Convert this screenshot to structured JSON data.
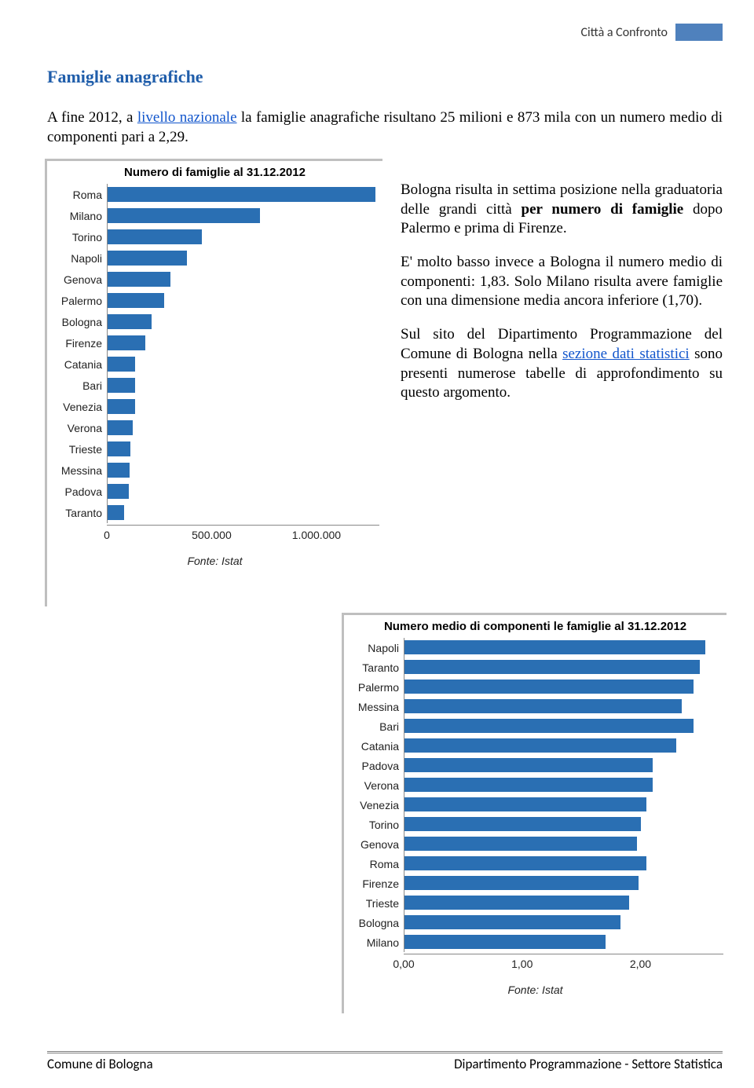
{
  "header": {
    "text": "Città a Confronto"
  },
  "section_title": "Famiglie anagrafiche",
  "intro": {
    "pre": "A fine 2012, a ",
    "link": "livello nazionale",
    "post": " la famiglie anagrafiche risultano 25 milioni e 873 mila con un numero medio di componenti pari a 2,29."
  },
  "chart1": {
    "title": "Numero di famiglie al 31.12.2012",
    "bar_color": "#2a6fb3",
    "xmax": 1300000,
    "ticks": [
      {
        "pos": 0,
        "label": "0"
      },
      {
        "pos": 500000,
        "label": "500.000"
      },
      {
        "pos": 1000000,
        "label": "1.000.000"
      }
    ],
    "rows": [
      {
        "label": "Roma",
        "value": 1280000
      },
      {
        "label": "Milano",
        "value": 730000
      },
      {
        "label": "Torino",
        "value": 450000
      },
      {
        "label": "Napoli",
        "value": 380000
      },
      {
        "label": "Genova",
        "value": 300000
      },
      {
        "label": "Palermo",
        "value": 270000
      },
      {
        "label": "Bologna",
        "value": 210000
      },
      {
        "label": "Firenze",
        "value": 180000
      },
      {
        "label": "Catania",
        "value": 130000
      },
      {
        "label": "Bari",
        "value": 130000
      },
      {
        "label": "Venezia",
        "value": 130000
      },
      {
        "label": "Verona",
        "value": 120000
      },
      {
        "label": "Trieste",
        "value": 110000
      },
      {
        "label": "Messina",
        "value": 105000
      },
      {
        "label": "Padova",
        "value": 100000
      },
      {
        "label": "Taranto",
        "value": 80000
      }
    ],
    "source": "Fonte: Istat"
  },
  "body": {
    "p1_pre": "Bologna risulta in settima posizione nella graduatoria delle grandi città ",
    "p1_b": "per numero di famiglie",
    "p1_post": " dopo Palermo e prima di Firenze.",
    "p2": "E' molto basso invece a Bologna il numero medio di componenti: 1,83. Solo Milano risulta avere famiglie con una dimensione media ancora inferiore (1,70).",
    "p3_pre": "Sul sito del Dipartimento Programmazione del Comune di Bologna nella ",
    "p3_link": "sezione dati statistici",
    "p3_post": " sono presenti numerose tabelle di approfondimento su questo argomento."
  },
  "chart2": {
    "title": "Numero medio di componenti le famiglie al 31.12.2012",
    "bar_color": "#2a6fb3",
    "xmax": 2.7,
    "ticks": [
      {
        "pos": 0,
        "label": "0,00"
      },
      {
        "pos": 1,
        "label": "1,00"
      },
      {
        "pos": 2,
        "label": "2,00"
      }
    ],
    "rows": [
      {
        "label": "Napoli",
        "value": 2.55
      },
      {
        "label": "Taranto",
        "value": 2.5
      },
      {
        "label": "Palermo",
        "value": 2.45
      },
      {
        "label": "Messina",
        "value": 2.35
      },
      {
        "label": "Bari",
        "value": 2.45
      },
      {
        "label": "Catania",
        "value": 2.3
      },
      {
        "label": "Padova",
        "value": 2.1
      },
      {
        "label": "Verona",
        "value": 2.1
      },
      {
        "label": "Venezia",
        "value": 2.05
      },
      {
        "label": "Torino",
        "value": 2.0
      },
      {
        "label": "Genova",
        "value": 1.97
      },
      {
        "label": "Roma",
        "value": 2.05
      },
      {
        "label": "Firenze",
        "value": 1.98
      },
      {
        "label": "Trieste",
        "value": 1.9
      },
      {
        "label": "Bologna",
        "value": 1.83
      },
      {
        "label": "Milano",
        "value": 1.7
      }
    ],
    "source": "Fonte: Istat"
  },
  "footer": {
    "left": "Comune di Bologna",
    "right": "Dipartimento Programmazione - Settore Statistica"
  }
}
